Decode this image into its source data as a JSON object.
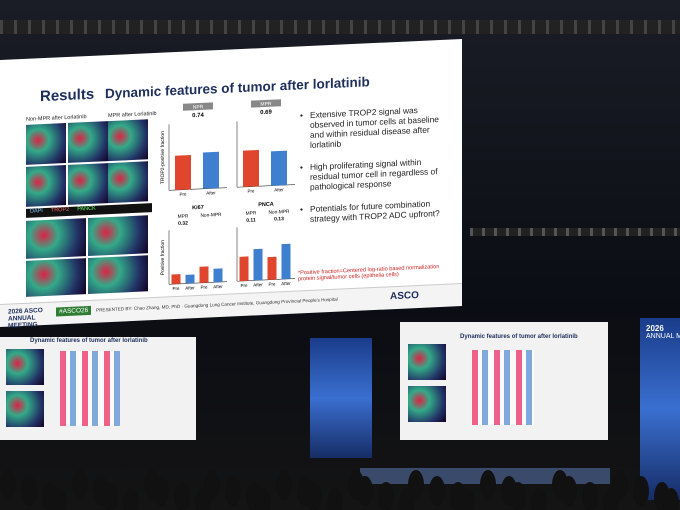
{
  "slide": {
    "section": "Results",
    "title": "Dynamic features of tumor after lorlatinib",
    "image_labels": [
      "Non-MPR after Lorlatinib",
      "MPR after Lorlatinib"
    ],
    "channel_legend": [
      "DAPI",
      "TROP2",
      "PANCK"
    ],
    "charts": [
      {
        "group": "NPR",
        "p_value": 0.74,
        "y_label": "TROP2-positive fraction",
        "categories": [
          "Pre",
          "After"
        ],
        "values": [
          0.52,
          0.55
        ],
        "colors": [
          "#e0452e",
          "#3f7fd0"
        ],
        "ylim": [
          0,
          1
        ]
      },
      {
        "group": "MPR",
        "p_value": 0.69,
        "categories": [
          "Pre",
          "After"
        ],
        "values": [
          0.55,
          0.52
        ],
        "colors": [
          "#e0452e",
          "#3f7fd0"
        ],
        "ylim": [
          0,
          1
        ]
      }
    ],
    "lower_charts": [
      {
        "marker": "Ki67",
        "groups": [
          "MPR",
          "Non-MPR"
        ],
        "p_values": [
          0.32
        ],
        "y_label": "Positive fraction",
        "categories": [
          "Pre",
          "After",
          "Pre",
          "After"
        ],
        "values": [
          0.18,
          0.16,
          0.3,
          0.25
        ],
        "colors": [
          "#e0452e",
          "#3f7fd0",
          "#e0452e",
          "#3f7fd0"
        ],
        "ylim": [
          0,
          1
        ]
      },
      {
        "marker": "PNCA",
        "groups": [
          "MPR",
          "Non-MPR"
        ],
        "p_values": [
          0.11,
          0.13
        ],
        "categories": [
          "Pre",
          "After",
          "Pre",
          "After"
        ],
        "values": [
          0.45,
          0.58,
          0.42,
          0.65
        ],
        "colors": [
          "#e0452e",
          "#3f7fd0",
          "#e0452e",
          "#3f7fd0"
        ],
        "ylim": [
          0,
          1
        ]
      }
    ],
    "bullets": [
      "Extensive TROP2 signal was observed in tumor cells at baseline and within residual disease after lorlatinib",
      "High proliferating signal within residual tumor cell in regardless of pathological response",
      "Potentials for future combination strategy with TROP2 ADC upfront?"
    ],
    "footnote": "*Positive fraction=Centered log-ratio based normalization protein signal/tumor cells (epithelia cells)",
    "meeting": "2026 ASCO ANNUAL MEETING",
    "hashtag": "#ASCO26",
    "presenter": "PRESENTED BY: Chao Zhang, MD, PhD · Guangdong Lung Cancer Institute, Guangdong Provincial People's Hospital",
    "logo": "ASCO"
  },
  "venue": {
    "right_screen_text": [
      "2026",
      "ANNUAL M"
    ]
  }
}
